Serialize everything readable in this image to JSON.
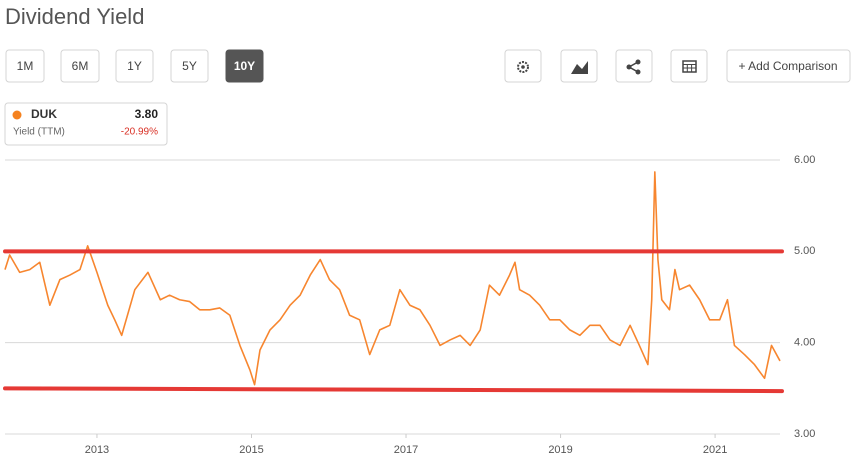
{
  "ui": {
    "ranges": [
      "1M",
      "6M",
      "1Y",
      "5Y",
      "10Y"
    ],
    "active_range": 4,
    "add_comparison": "+ Add Comparison",
    "legend": {
      "ticker": "DUK",
      "value": "3.80",
      "metric": "Yield (TTM)",
      "change": "-20.99%"
    }
  },
  "chart_data": {
    "type": "line",
    "title": "Dividend Yield",
    "x": [
      2011.81,
      2011.87,
      2012.0,
      2012.13,
      2012.26,
      2012.39,
      2012.52,
      2012.65,
      2012.78,
      2012.88,
      2013.0,
      2013.14,
      2013.23,
      2013.32,
      2013.49,
      2013.66,
      2013.82,
      2013.94,
      2014.07,
      2014.2,
      2014.33,
      2014.46,
      2014.59,
      2014.72,
      2014.85,
      2014.98,
      2015.04,
      2015.11,
      2015.24,
      2015.37,
      2015.5,
      2015.63,
      2015.76,
      2015.89,
      2016.01,
      2016.14,
      2016.27,
      2016.4,
      2016.53,
      2016.66,
      2016.79,
      2016.92,
      2017.05,
      2017.18,
      2017.31,
      2017.44,
      2017.57,
      2017.7,
      2017.83,
      2017.96,
      2018.08,
      2018.21,
      2018.34,
      2018.41,
      2018.47,
      2018.6,
      2018.73,
      2018.86,
      2018.99,
      2019.12,
      2019.25,
      2019.38,
      2019.51,
      2019.64,
      2019.77,
      2019.9,
      2020.02,
      2020.13,
      2020.18,
      2020.22,
      2020.26,
      2020.31,
      2020.41,
      2020.48,
      2020.54,
      2020.67,
      2020.8,
      2020.93,
      2021.06,
      2021.16,
      2021.25,
      2021.38,
      2021.51,
      2021.64,
      2021.73,
      2021.84
    ],
    "series": [
      {
        "name": "DUK",
        "color": "#f7862f",
        "values": [
          4.8,
          4.96,
          4.77,
          4.8,
          4.88,
          4.41,
          4.69,
          4.74,
          4.8,
          5.06,
          4.77,
          4.41,
          4.25,
          4.08,
          4.58,
          4.77,
          4.47,
          4.52,
          4.47,
          4.45,
          4.36,
          4.36,
          4.38,
          4.3,
          3.97,
          3.7,
          3.54,
          3.92,
          4.14,
          4.25,
          4.41,
          4.52,
          4.74,
          4.91,
          4.69,
          4.58,
          4.3,
          4.25,
          3.87,
          4.14,
          4.19,
          4.58,
          4.41,
          4.36,
          4.19,
          3.97,
          4.03,
          4.08,
          3.97,
          4.14,
          4.63,
          4.52,
          4.74,
          4.88,
          4.58,
          4.52,
          4.41,
          4.25,
          4.25,
          4.14,
          4.08,
          4.19,
          4.19,
          4.03,
          3.97,
          4.19,
          3.97,
          3.76,
          4.47,
          5.87,
          4.91,
          4.47,
          4.36,
          4.8,
          4.58,
          4.63,
          4.47,
          4.25,
          4.25,
          4.47,
          3.97,
          3.87,
          3.76,
          3.61,
          3.97,
          3.8
        ]
      }
    ],
    "annotation_lines": [
      {
        "color": "#e53935",
        "values": [
          5.0,
          5.0
        ]
      },
      {
        "color": "#e53935",
        "values": [
          3.5,
          3.47
        ]
      }
    ],
    "xlim": [
      2011.81,
      2021.84
    ],
    "xticks": [
      2013,
      2015,
      2017,
      2019,
      2021
    ],
    "ylim": [
      3,
      6
    ],
    "yticks": [
      {
        "value": 3,
        "label": "3.00"
      },
      {
        "value": 4,
        "label": "4.00"
      },
      {
        "value": 5,
        "label": "5.00"
      },
      {
        "value": 6,
        "label": "6.00"
      }
    ],
    "grid": true
  }
}
